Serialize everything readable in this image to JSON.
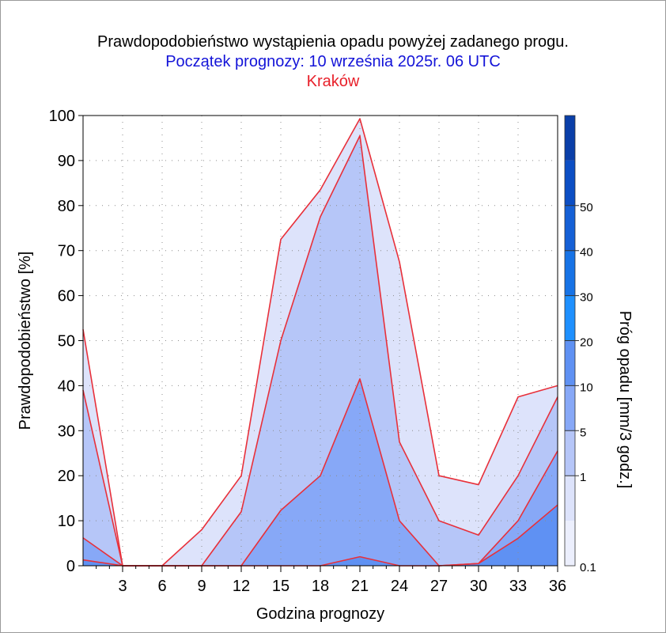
{
  "titles": {
    "line1": "Prawdopodobieństwo wystąpienia opadu powyżej zadanego progu.",
    "line2": "Początek prognozy: 10 września 2025r. 06 UTC",
    "line3": "Kraków"
  },
  "colors": {
    "title1": "#000000",
    "title2": "#1414d8",
    "title3": "#e8202a",
    "boundary_line": "#e8303a"
  },
  "chart_data": {
    "type": "area",
    "xlabel": "Godzina prognozy",
    "ylabel": "Prawdopodobieństwo [%]",
    "xlim": [
      0,
      36
    ],
    "ylim": [
      0,
      100
    ],
    "xticks": [
      3,
      6,
      9,
      12,
      15,
      18,
      21,
      24,
      27,
      30,
      33,
      36
    ],
    "yticks": [
      0,
      10,
      20,
      30,
      40,
      50,
      60,
      70,
      80,
      90,
      100
    ],
    "grid": "dotted",
    "x": [
      0,
      3,
      6,
      9,
      12,
      15,
      18,
      21,
      24,
      27,
      30,
      33,
      36
    ],
    "series": [
      {
        "threshold": "0.1",
        "color": "#dde3fb",
        "values": [
          52.5,
          0,
          0,
          8,
          20,
          72.5,
          83.5,
          99.3,
          67.5,
          20,
          18,
          37.5,
          40
        ]
      },
      {
        "threshold": "1",
        "color": "#b6c6f8",
        "values": [
          39,
          0,
          0,
          0,
          12,
          50,
          77.5,
          95.5,
          27.5,
          10,
          6.8,
          20,
          37.5
        ]
      },
      {
        "threshold": "5",
        "color": "#87a8f7",
        "values": [
          6.2,
          0,
          0,
          0,
          0,
          12.3,
          20,
          41.5,
          10,
          0,
          0.5,
          10,
          25.5
        ]
      },
      {
        "threshold": "10",
        "color": "#5f91f3",
        "values": [
          1.3,
          0,
          0,
          0,
          0,
          0,
          0,
          2,
          0,
          0,
          0.5,
          6.1,
          13.5
        ]
      }
    ],
    "colorbar": {
      "title": "Próg opadu [mm/3 godz.]",
      "labels": [
        "0.1",
        "1",
        "5",
        "10",
        "20",
        "30",
        "40",
        "50"
      ],
      "colors": [
        "#eceffd",
        "#dde3fb",
        "#b6c6f8",
        "#87a8f7",
        "#5f91f3",
        "#1e90ff",
        "#1773e6",
        "#1560d6",
        "#0c4ec4",
        "#0a3fa8"
      ]
    }
  }
}
